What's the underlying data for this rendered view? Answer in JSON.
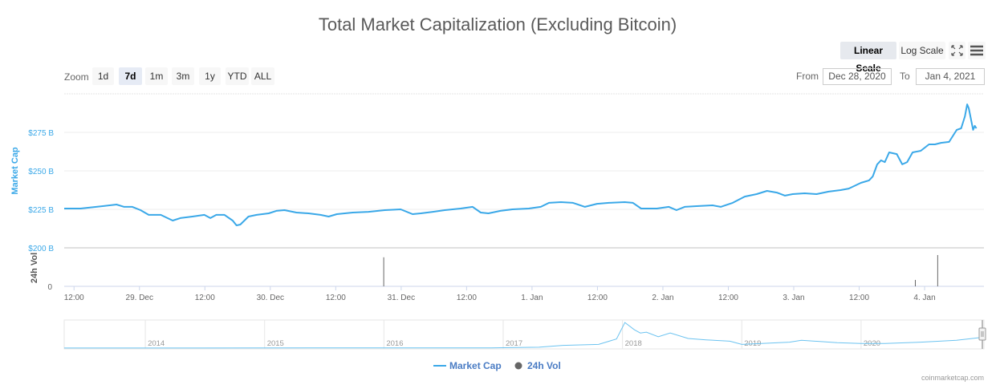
{
  "title": "Total Market Capitalization (Excluding Bitcoin)",
  "toolbar": {
    "linear_scale": "Linear Scale",
    "log_scale": "Log Scale",
    "active_scale": "linear",
    "fullscreen_icon": "expand-arrows-icon",
    "menu_icon": "hamburger-menu-icon"
  },
  "zoom": {
    "label": "Zoom",
    "buttons": [
      "1d",
      "7d",
      "1m",
      "3m",
      "1y",
      "YTD",
      "ALL"
    ],
    "selected": "7d"
  },
  "range": {
    "from_label": "From",
    "from_value": "Dec 28, 2020",
    "to_label": "To",
    "to_value": "Jan 4, 2021"
  },
  "credit": "coinmarketcap.com",
  "colors": {
    "market_cap": "#3aa8e8",
    "volume": "#666666",
    "y_axis_text": "#3aa8e8"
  },
  "chart_data": {
    "type": "line",
    "title": "Total Market Capitalization (Excluding Bitcoin)",
    "y_axis_label": "Market Cap",
    "volume_axis_label": "24h Vol",
    "y_ticks": [
      "$200 B",
      "$225 B",
      "$250 B",
      "$275 B"
    ],
    "ylim": [
      200,
      300
    ],
    "volume_ticks": [
      "0"
    ],
    "x_ticks": [
      "12:00",
      "29. Dec",
      "12:00",
      "30. Dec",
      "12:00",
      "31. Dec",
      "12:00",
      "1. Jan",
      "12:00",
      "2. Jan",
      "12:00",
      "3. Jan",
      "12:00",
      "4. Jan"
    ],
    "x_tick_times": [
      "2020-12-28T12:00",
      "2020-12-29T00:00",
      "2020-12-29T12:00",
      "2020-12-30T00:00",
      "2020-12-30T12:00",
      "2020-12-31T00:00",
      "2020-12-31T12:00",
      "2021-01-01T00:00",
      "2021-01-01T12:00",
      "2021-01-02T00:00",
      "2021-01-02T12:00",
      "2021-01-03T00:00",
      "2021-01-03T12:00",
      "2021-01-04T00:00"
    ],
    "xlim": [
      "2020-12-28T10:12",
      "2021-01-04T10:00"
    ],
    "grid": true,
    "legend": {
      "position": "bottom",
      "items": [
        "Market Cap",
        "24h Vol"
      ]
    },
    "series": [
      {
        "name": "Market Cap",
        "unit": "$B",
        "points": [
          [
            "2020-12-28T10:12",
            225.5
          ],
          [
            "2020-12-28T13:12",
            225.5
          ],
          [
            "2020-12-28T16:06",
            226.6
          ],
          [
            "2020-12-28T19:48",
            228.1
          ],
          [
            "2020-12-28T21:12",
            226.6
          ],
          [
            "2020-12-28T22:42",
            226.6
          ],
          [
            "2020-12-29T00:12",
            224.5
          ],
          [
            "2020-12-29T01:42",
            221.4
          ],
          [
            "2020-12-29T03:54",
            221.4
          ],
          [
            "2020-12-29T06:06",
            217.7
          ],
          [
            "2020-12-29T07:30",
            219.3
          ],
          [
            "2020-12-29T09:42",
            220.3
          ],
          [
            "2020-12-29T11:54",
            221.4
          ],
          [
            "2020-12-29T13:00",
            219.3
          ],
          [
            "2020-12-29T14:06",
            221.4
          ],
          [
            "2020-12-29T15:36",
            221.4
          ],
          [
            "2020-12-29T17:06",
            217.7
          ],
          [
            "2020-12-29T17:48",
            214.6
          ],
          [
            "2020-12-29T18:30",
            215.1
          ],
          [
            "2020-12-29T20:00",
            220.3
          ],
          [
            "2020-12-29T21:30",
            221.4
          ],
          [
            "2020-12-29T23:42",
            222.4
          ],
          [
            "2020-12-30T01:06",
            224.0
          ],
          [
            "2020-12-30T02:36",
            224.5
          ],
          [
            "2020-12-30T04:48",
            222.9
          ],
          [
            "2020-12-30T07:00",
            222.4
          ],
          [
            "2020-12-30T09:12",
            221.4
          ],
          [
            "2020-12-30T10:42",
            220.3
          ],
          [
            "2020-12-30T12:12",
            221.9
          ],
          [
            "2020-12-30T15:06",
            222.9
          ],
          [
            "2020-12-30T18:00",
            223.4
          ],
          [
            "2020-12-30T21:00",
            224.5
          ],
          [
            "2020-12-30T23:54",
            225.0
          ],
          [
            "2020-12-31T02:06",
            221.9
          ],
          [
            "2020-12-31T03:36",
            222.4
          ],
          [
            "2020-12-31T05:48",
            223.4
          ],
          [
            "2020-12-31T08:00",
            224.5
          ],
          [
            "2020-12-31T10:54",
            225.5
          ],
          [
            "2020-12-31T13:06",
            226.6
          ],
          [
            "2020-12-31T14:36",
            222.9
          ],
          [
            "2020-12-31T16:00",
            222.4
          ],
          [
            "2020-12-31T18:12",
            224.0
          ],
          [
            "2020-12-31T20:24",
            225.0
          ],
          [
            "2020-12-31T23:24",
            225.5
          ],
          [
            "2021-01-01T01:36",
            226.6
          ],
          [
            "2021-01-01T03:06",
            229.2
          ],
          [
            "2021-01-01T05:18",
            229.7
          ],
          [
            "2021-01-01T07:30",
            229.2
          ],
          [
            "2021-01-01T09:42",
            226.6
          ],
          [
            "2021-01-01T11:54",
            228.6
          ],
          [
            "2021-01-01T14:06",
            229.2
          ],
          [
            "2021-01-01T17:00",
            229.7
          ],
          [
            "2021-01-01T18:30",
            229.2
          ],
          [
            "2021-01-01T20:00",
            225.5
          ],
          [
            "2021-01-01T22:54",
            225.5
          ],
          [
            "2021-01-02T01:06",
            226.6
          ],
          [
            "2021-01-02T02:30",
            224.5
          ],
          [
            "2021-01-02T04:00",
            226.6
          ],
          [
            "2021-01-02T06:12",
            227.1
          ],
          [
            "2021-01-02T09:06",
            227.6
          ],
          [
            "2021-01-02T10:36",
            226.6
          ],
          [
            "2021-01-02T12:48",
            229.2
          ],
          [
            "2021-01-02T15:00",
            233.3
          ],
          [
            "2021-01-02T17:12",
            234.9
          ],
          [
            "2021-01-02T19:06",
            237.0
          ],
          [
            "2021-01-02T20:54",
            235.9
          ],
          [
            "2021-01-02T22:24",
            233.9
          ],
          [
            "2021-01-02T23:48",
            234.9
          ],
          [
            "2021-01-03T02:00",
            235.4
          ],
          [
            "2021-01-03T04:12",
            234.9
          ],
          [
            "2021-01-03T06:24",
            236.5
          ],
          [
            "2021-01-03T08:36",
            237.5
          ],
          [
            "2021-01-03T10:06",
            238.5
          ],
          [
            "2021-01-03T12:18",
            242.2
          ],
          [
            "2021-01-03T13:48",
            243.8
          ],
          [
            "2021-01-03T14:30",
            246.4
          ],
          [
            "2021-01-03T15:18",
            254.2
          ],
          [
            "2021-01-03T16:00",
            256.8
          ],
          [
            "2021-01-03T16:42",
            255.7
          ],
          [
            "2021-01-03T17:30",
            262.0
          ],
          [
            "2021-01-03T18:54",
            260.9
          ],
          [
            "2021-01-03T19:54",
            254.2
          ],
          [
            "2021-01-03T20:48",
            255.7
          ],
          [
            "2021-01-03T21:48",
            262.0
          ],
          [
            "2021-01-03T23:18",
            263.0
          ],
          [
            "2021-01-04T00:48",
            267.2
          ],
          [
            "2021-01-04T01:54",
            267.2
          ],
          [
            "2021-01-04T03:00",
            268.2
          ],
          [
            "2021-01-04T04:30",
            268.8
          ],
          [
            "2021-01-04T05:54",
            276.6
          ],
          [
            "2021-01-04T06:42",
            277.6
          ],
          [
            "2021-01-04T07:24",
            285.4
          ],
          [
            "2021-01-04T07:48",
            293.2
          ],
          [
            "2021-01-04T08:06",
            290.6
          ],
          [
            "2021-01-04T08:54",
            276.6
          ],
          [
            "2021-01-04T09:12",
            279.2
          ],
          [
            "2021-01-04T09:30",
            277.6
          ]
        ]
      },
      {
        "name": "24h Vol",
        "type": "column",
        "relative_values": [
          [
            "2020-12-30T20:48",
            0.77
          ],
          [
            "2021-01-03T22:18",
            0.17
          ],
          [
            "2021-01-04T02:24",
            0.83
          ]
        ]
      }
    ],
    "navigator": {
      "x_ticks": [
        "2014",
        "2015",
        "2016",
        "2017",
        "2018",
        "2019",
        "2020"
      ],
      "xlim": [
        2013.32,
        2021.03
      ],
      "points": [
        [
          2013.32,
          1
        ],
        [
          2016.9,
          5
        ],
        [
          2017.3,
          20
        ],
        [
          2017.5,
          60
        ],
        [
          2017.8,
          80
        ],
        [
          2017.95,
          200
        ],
        [
          2018.02,
          560
        ],
        [
          2018.1,
          400
        ],
        [
          2018.15,
          330
        ],
        [
          2018.2,
          350
        ],
        [
          2018.3,
          250
        ],
        [
          2018.4,
          330
        ],
        [
          2018.55,
          210
        ],
        [
          2018.7,
          180
        ],
        [
          2018.9,
          150
        ],
        [
          2019.0,
          80
        ],
        [
          2019.4,
          130
        ],
        [
          2019.5,
          170
        ],
        [
          2019.8,
          120
        ],
        [
          2020.0,
          100
        ],
        [
          2020.2,
          100
        ],
        [
          2020.5,
          130
        ],
        [
          2020.8,
          170
        ],
        [
          2021.0,
          230
        ]
      ]
    }
  }
}
